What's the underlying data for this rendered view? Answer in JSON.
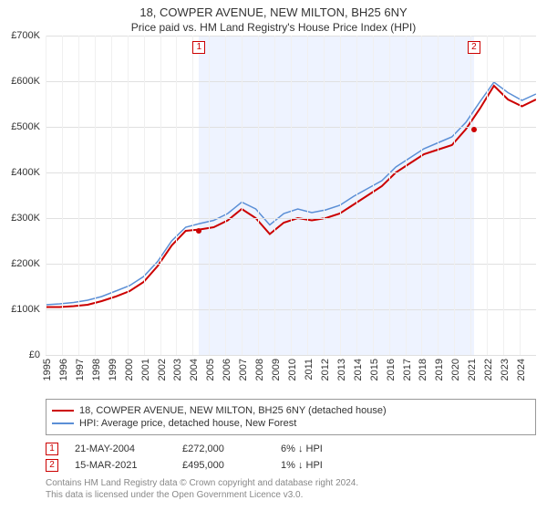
{
  "title": "18, COWPER AVENUE, NEW MILTON, BH25 6NY",
  "subtitle": "Price paid vs. HM Land Registry's House Price Index (HPI)",
  "chart": {
    "type": "line",
    "background_color": "#ffffff",
    "grid_color": "#e0e0e0",
    "shade_color": "#eef3ff",
    "x_min": 1995,
    "x_max": 2025,
    "y_min": 0,
    "y_max": 700,
    "y_unit_prefix": "£",
    "y_unit_suffix": "K",
    "y_ticks": [
      0,
      100,
      200,
      300,
      400,
      500,
      600,
      700
    ],
    "x_ticks": [
      1995,
      1996,
      1997,
      1998,
      1999,
      2000,
      2001,
      2002,
      2003,
      2004,
      2005,
      2006,
      2007,
      2008,
      2009,
      2010,
      2011,
      2012,
      2013,
      2014,
      2015,
      2016,
      2017,
      2018,
      2019,
      2020,
      2021,
      2022,
      2023,
      2024
    ],
    "shade_start": 2004.39,
    "shade_end": 2021.2,
    "series": [
      {
        "name": "18, COWPER AVENUE, NEW MILTON, BH25 6NY (detached house)",
        "color": "#cc0000",
        "line_width": 2,
        "y": [
          105,
          105,
          107,
          110,
          118,
          128,
          140,
          160,
          195,
          240,
          272,
          275,
          280,
          295,
          320,
          300,
          265,
          290,
          300,
          295,
          300,
          310,
          330,
          350,
          370,
          400,
          420,
          440,
          450,
          460,
          495,
          540,
          590,
          560,
          545,
          560
        ]
      },
      {
        "name": "HPI: Average price, detached house, New Forest",
        "color": "#5b8fd6",
        "line_width": 1.5,
        "y": [
          110,
          112,
          115,
          120,
          128,
          140,
          152,
          172,
          205,
          250,
          280,
          288,
          295,
          310,
          335,
          320,
          285,
          310,
          320,
          312,
          318,
          328,
          348,
          365,
          382,
          412,
          432,
          452,
          465,
          478,
          510,
          555,
          598,
          575,
          558,
          572
        ]
      }
    ],
    "series_x_step": 0.857,
    "sale_points": [
      {
        "label": "1",
        "x": 2004.39,
        "y": 272
      },
      {
        "label": "2",
        "x": 2021.2,
        "y": 495
      }
    ],
    "marker_style": {
      "border_color": "#cc0000",
      "text_color": "#cc0000",
      "fontsize": 10
    },
    "label_fontsize": 11,
    "title_fontsize": 13,
    "subtitle_fontsize": 12
  },
  "legend": {
    "items": [
      {
        "color": "#cc0000",
        "label": "18, COWPER AVENUE, NEW MILTON, BH25 6NY (detached house)"
      },
      {
        "color": "#5b8fd6",
        "label": "HPI: Average price, detached house, New Forest"
      }
    ]
  },
  "sales": [
    {
      "marker": "1",
      "date": "21-MAY-2004",
      "price": "£272,000",
      "diff": "6% ↓ HPI"
    },
    {
      "marker": "2",
      "date": "15-MAR-2021",
      "price": "£495,000",
      "diff": "1% ↓ HPI"
    }
  ],
  "footer_line1": "Contains HM Land Registry data © Crown copyright and database right 2024.",
  "footer_line2": "This data is licensed under the Open Government Licence v3.0."
}
